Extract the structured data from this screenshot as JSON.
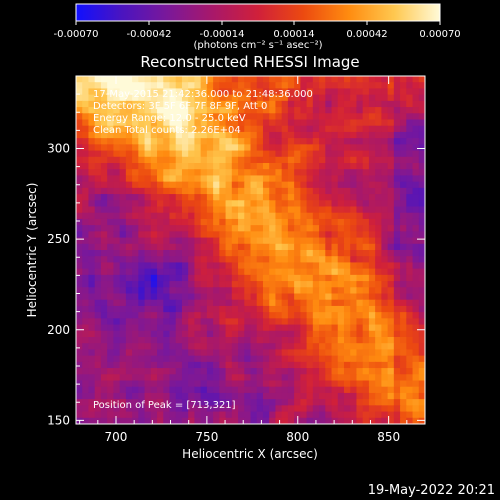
{
  "colorbar": {
    "ticks": [
      "-0.00070",
      "-0.00042",
      "-0.00014",
      "0.00014",
      "0.00042",
      "0.00070"
    ],
    "range": [
      -0.0007,
      0.0007
    ],
    "unit_label": "(photons cm⁻² s⁻¹ asec⁻²)",
    "colors": [
      "#1010ff",
      "#4a14c0",
      "#7a189a",
      "#a8186a",
      "#d0203a",
      "#ec4a10",
      "#ff8c10",
      "#ffc850",
      "#fffad8"
    ]
  },
  "chart_data": {
    "type": "heatmap",
    "title": "Reconstructed RHESSI Image",
    "xlabel": "Heliocentric X (arcsec)",
    "ylabel": "Heliocentric Y (arcsec)",
    "xlim": [
      678,
      870
    ],
    "ylim": [
      148,
      340
    ],
    "xticks": [
      700,
      750,
      800,
      850
    ],
    "yticks": [
      150,
      200,
      250,
      300
    ],
    "grid": false,
    "peak": [
      713,
      321
    ],
    "annotations": [
      "17-May-2015 21:42:36.000 to 21:48:36.000",
      "Detectors: 3F 5F 6F 7F 8F 9F, Att 0",
      "Energy Range: 12.0 - 25.0 keV",
      "Clean    Total counts: 2.26E+04",
      "Position of Peak = [713,321]"
    ]
  },
  "footer": {
    "timestamp": "19-May-2022 20:21"
  }
}
